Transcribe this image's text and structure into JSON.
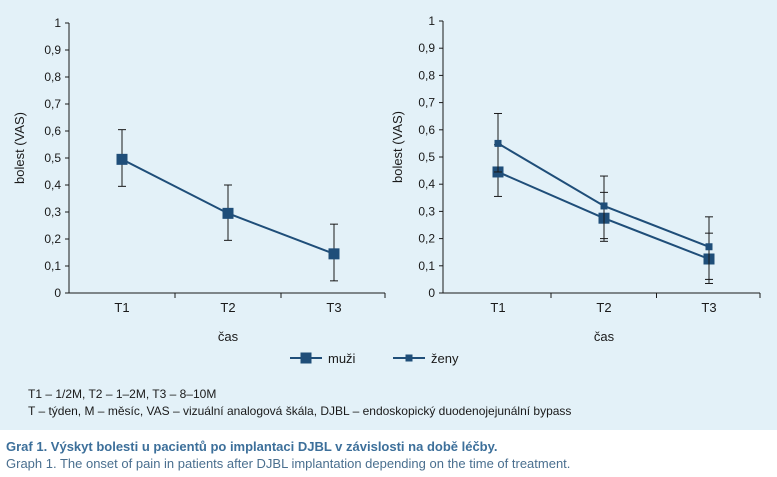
{
  "chart_data": [
    {
      "type": "line",
      "categories": [
        "T1",
        "T2",
        "T3"
      ],
      "xlabel": "čas",
      "ylabel": "bolest (VAS)",
      "ylim": [
        0,
        1
      ],
      "yticks": [
        "0",
        "0,1",
        "0,2",
        "0,3",
        "0,4",
        "0,5",
        "0,6",
        "0,7",
        "0,8",
        "0,9",
        "1"
      ],
      "series": [
        {
          "values": [
            0.495,
            0.295,
            0.145
          ],
          "err_low": [
            0.395,
            0.195,
            0.045
          ],
          "err_high": [
            0.605,
            0.4,
            0.255
          ],
          "marker": "large-square"
        }
      ]
    },
    {
      "type": "line",
      "categories": [
        "T1",
        "T2",
        "T3"
      ],
      "xlabel": "čas",
      "ylabel": "bolest (VAS)",
      "ylim": [
        0,
        1
      ],
      "yticks": [
        "0",
        "0,1",
        "0,2",
        "0,3",
        "0,4",
        "0,5",
        "0,6",
        "0,7",
        "0,8",
        "0,9",
        "1"
      ],
      "series": [
        {
          "name": "muži",
          "values": [
            0.445,
            0.275,
            0.125
          ],
          "err_low": [
            0.355,
            0.19,
            0.035
          ],
          "err_high": [
            0.545,
            0.37,
            0.22
          ],
          "marker": "large-square"
        },
        {
          "name": "ženy",
          "values": [
            0.55,
            0.32,
            0.17
          ],
          "err_low": [
            0.445,
            0.2,
            0.05
          ],
          "err_high": [
            0.66,
            0.43,
            0.28
          ],
          "marker": "small-square"
        }
      ]
    }
  ],
  "legend": {
    "position": "bottom-center",
    "items": [
      {
        "label": "muži",
        "marker": "large-square"
      },
      {
        "label": "ženy",
        "marker": "small-square"
      }
    ]
  },
  "notes": {
    "line1": "T1 – 1/2M, T2 – 1–2M, T3 – 8–10M",
    "line2": "T – týden, M – měsíc, VAS – vizuální analogová škála, DJBL – endoskopický duodenojejunální bypass"
  },
  "caption": {
    "cs": "Graf 1. Výskyt bolesti u pacientů po implantaci DJBL v závislosti na době léčby.",
    "en": "Graph 1. The onset of pain in patients after DJBL implantation depending on the time of treatment."
  },
  "colors": {
    "series": "#1f4e79",
    "panel_bg": "#e3f1f8",
    "axis": "#1a1a1a",
    "caption_cs": "#3c6f9a",
    "caption_en": "#4a6f8f"
  }
}
